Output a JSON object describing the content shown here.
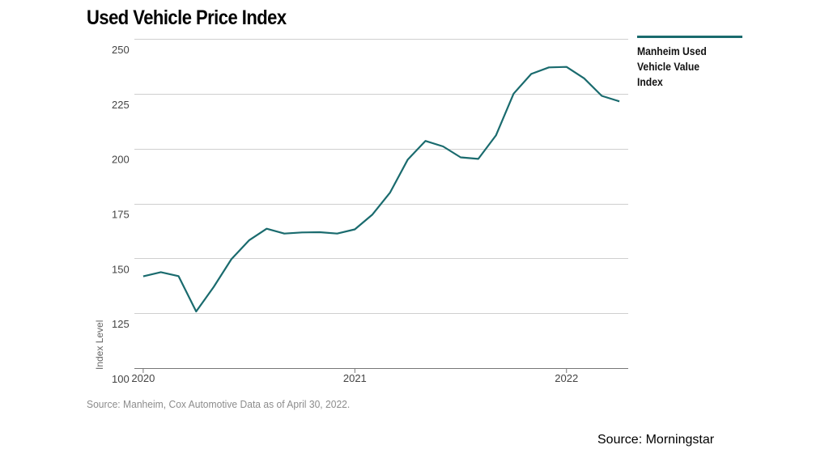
{
  "chart_data": {
    "type": "line",
    "title": "Used Vehicle Price Index",
    "ylabel": "Index Level",
    "xlabel": "",
    "ylim": [
      100,
      250
    ],
    "yticks": [
      250,
      225,
      200,
      175,
      150,
      125,
      100
    ],
    "xticks": [
      {
        "label": "2020",
        "x": 0
      },
      {
        "label": "2021",
        "x": 12
      },
      {
        "label": "2022",
        "x": 24
      }
    ],
    "xlim": [
      -0.5,
      27.5
    ],
    "grid": true,
    "legend_position": "right",
    "series": [
      {
        "name": "Manheim Used Vehicle Value Index",
        "color": "#1a6b6e",
        "x": [
          0,
          1,
          2,
          3,
          4,
          5,
          6,
          7,
          8,
          9,
          10,
          11,
          12,
          13,
          14,
          15,
          16,
          17,
          18,
          19,
          20,
          21,
          22,
          23,
          24,
          25,
          26,
          27
        ],
        "values": [
          141.8,
          143.7,
          141.9,
          125.8,
          137.0,
          149.6,
          158.2,
          163.5,
          161.3,
          161.8,
          161.9,
          161.3,
          163.2,
          170.0,
          180.0,
          195.0,
          203.5,
          201.0,
          196.0,
          195.3,
          206.0,
          225.0,
          234.0,
          237.0,
          237.2,
          232.0,
          224.0,
          221.5
        ]
      }
    ]
  },
  "source_note": "Source: Manheim, Cox Automotive Data as of April 30, 2022.",
  "credit": "Source: Morningstar"
}
